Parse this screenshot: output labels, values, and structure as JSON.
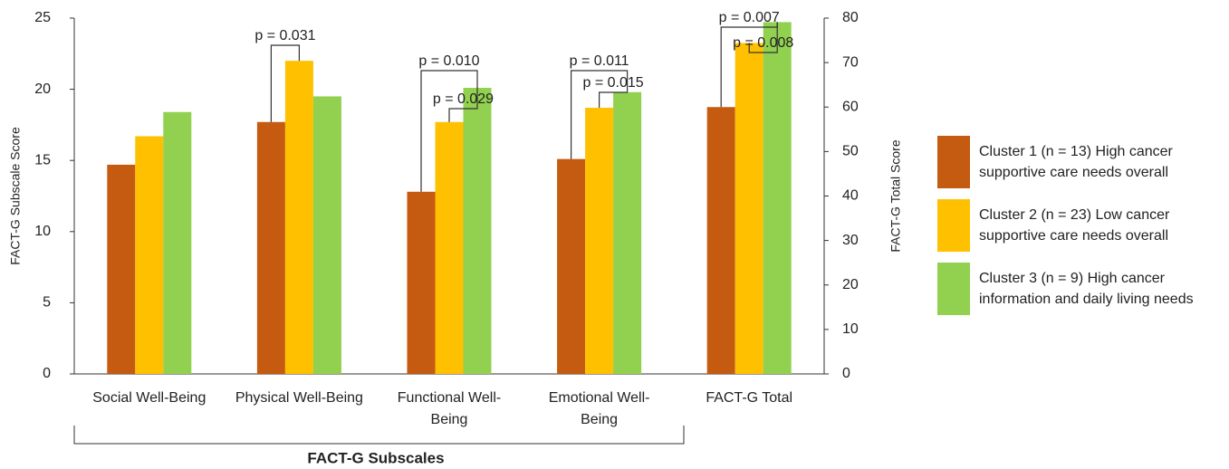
{
  "chart_data": {
    "type": "bar",
    "categories": [
      "Social Well-Being",
      "Physical Well-Being",
      "Functional Well-Being",
      "Emotional Well-Being",
      "FACT-G Total"
    ],
    "axis_by_category": [
      "y",
      "y",
      "y",
      "y",
      "y2"
    ],
    "series": [
      {
        "name": "Cluster 1 (n = 13) High cancer supportive care needs overall",
        "color": "#c55a11",
        "values": [
          14.7,
          17.7,
          12.8,
          15.1,
          60
        ]
      },
      {
        "name": "Cluster 2 (n = 23) Low cancer supportive care needs overall",
        "color": "#ffc000",
        "values": [
          16.7,
          22.0,
          17.7,
          18.7,
          74.4
        ]
      },
      {
        "name": "Cluster 3 (n = 9) High cancer information and daily living needs",
        "color": "#92d050",
        "values": [
          18.4,
          19.5,
          20.1,
          19.8,
          79.1
        ]
      }
    ],
    "ylabel": "FACT-G Subscale Score",
    "y2label": "FACT-G Total Score",
    "xlabel": "FACT-G Subscales",
    "ylim": [
      0,
      25
    ],
    "yticks": [
      0,
      5,
      10,
      15,
      20,
      25
    ],
    "y2lim": [
      0,
      80
    ],
    "y2ticks": [
      0,
      10,
      20,
      30,
      40,
      50,
      60,
      70,
      80
    ],
    "annotations": [
      "p = 0.031",
      "p = 0.010",
      "p = 0.029",
      "p = 0.011",
      "p = 0.015",
      "p = 0.007",
      "p = 0.008"
    ],
    "legend": "right"
  }
}
